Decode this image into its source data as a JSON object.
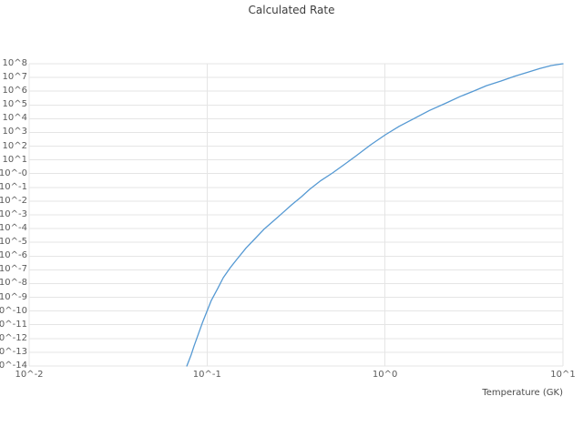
{
  "chart_data": {
    "type": "line",
    "title": "Calculated Rate",
    "xlabel": "Temperature (GK)",
    "ylabel": "",
    "x_scale": "log10",
    "y_scale": "log10",
    "x_range_log10": [
      -2,
      1
    ],
    "y_range_log10": [
      -14,
      8
    ],
    "grid": true,
    "grid_color": "#e5e5e5",
    "line_color": "#5599d3",
    "legend": "none",
    "x_ticks": [
      {
        "log10": -2,
        "label": "10^-2"
      },
      {
        "log10": -1,
        "label": "10^-1"
      },
      {
        "log10": 0,
        "label": "10^0"
      },
      {
        "log10": 1,
        "label": "10^1"
      }
    ],
    "y_ticks": [
      {
        "log10": 8,
        "label": "10^8"
      },
      {
        "log10": 7,
        "label": "10^7"
      },
      {
        "log10": 6,
        "label": "10^6"
      },
      {
        "log10": 5,
        "label": "10^5"
      },
      {
        "log10": 4,
        "label": "10^4"
      },
      {
        "log10": 3,
        "label": "10^3"
      },
      {
        "log10": 2,
        "label": "10^2"
      },
      {
        "log10": 1,
        "label": "10^1"
      },
      {
        "log10": 0,
        "label": "10^-0"
      },
      {
        "log10": -1,
        "label": "10^-1"
      },
      {
        "log10": -2,
        "label": "10^-2"
      },
      {
        "log10": -3,
        "label": "10^-3"
      },
      {
        "log10": -4,
        "label": "10^-4"
      },
      {
        "log10": -5,
        "label": "10^-5"
      },
      {
        "log10": -6,
        "label": "10^-6"
      },
      {
        "log10": -7,
        "label": "10^-7"
      },
      {
        "log10": -8,
        "label": "10^-8"
      },
      {
        "log10": -9,
        "label": "10^-9"
      },
      {
        "log10": -10,
        "label": "10^-10"
      },
      {
        "log10": -11,
        "label": "10^-11"
      },
      {
        "log10": -12,
        "label": "10^-12"
      },
      {
        "log10": -13,
        "label": "10^-13"
      },
      {
        "log10": -14,
        "label": "10^-14"
      }
    ],
    "series": [
      {
        "name": "calculated-rate",
        "points_log10": [
          [
            -1.114,
            -14.0
          ],
          [
            -1.09,
            -13.2
          ],
          [
            -1.073,
            -12.53
          ],
          [
            -1.05,
            -11.7
          ],
          [
            -1.027,
            -10.87
          ],
          [
            -1.0,
            -10.0
          ],
          [
            -0.976,
            -9.22
          ],
          [
            -0.94,
            -8.35
          ],
          [
            -0.909,
            -7.57
          ],
          [
            -0.87,
            -6.85
          ],
          [
            -0.833,
            -6.24
          ],
          [
            -0.78,
            -5.4
          ],
          [
            -0.73,
            -4.72
          ],
          [
            -0.68,
            -4.05
          ],
          [
            -0.628,
            -3.46
          ],
          [
            -0.575,
            -2.85
          ],
          [
            -0.525,
            -2.27
          ],
          [
            -0.47,
            -1.68
          ],
          [
            -0.423,
            -1.14
          ],
          [
            -0.36,
            -0.5
          ],
          [
            -0.295,
            0.05
          ],
          [
            -0.23,
            0.65
          ],
          [
            -0.167,
            1.25
          ],
          [
            -0.08,
            2.1
          ],
          [
            0.002,
            2.83
          ],
          [
            0.08,
            3.45
          ],
          [
            0.166,
            4.03
          ],
          [
            0.25,
            4.6
          ],
          [
            0.345,
            5.15
          ],
          [
            0.42,
            5.6
          ],
          [
            0.499,
            6.01
          ],
          [
            0.57,
            6.4
          ],
          [
            0.652,
            6.74
          ],
          [
            0.73,
            7.1
          ],
          [
            0.806,
            7.4
          ],
          [
            0.87,
            7.65
          ],
          [
            0.934,
            7.87
          ],
          [
            1.0,
            8.0
          ]
        ]
      }
    ]
  },
  "colors": {
    "title": "#3d3d3d",
    "tick": "#5a5a5a",
    "axis_label": "#4c4c4c"
  }
}
